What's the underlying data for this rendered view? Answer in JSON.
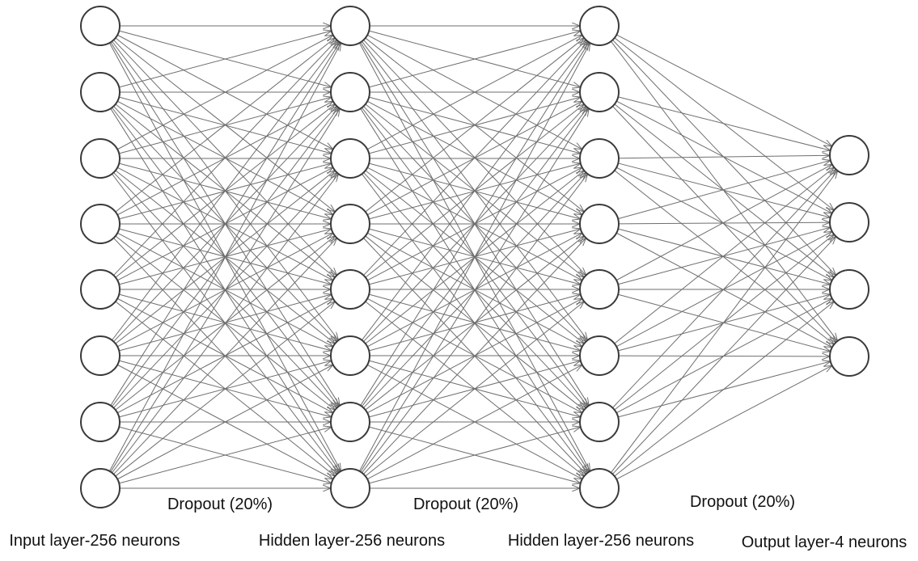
{
  "network": {
    "layers": [
      {
        "label": "Input layer-256 neurons",
        "neurons_drawn": 8
      },
      {
        "label": "Hidden layer-256 neurons",
        "neurons_drawn": 8
      },
      {
        "label": "Hidden layer-256 neurons",
        "neurons_drawn": 8
      },
      {
        "label": "Output layer-4 neurons",
        "neurons_drawn": 4
      }
    ],
    "dropouts": [
      {
        "label": "Dropout (20%)"
      },
      {
        "label": "Dropout (20%)"
      },
      {
        "label": "Dropout (20%)"
      }
    ],
    "connections": "fully-connected",
    "colors": {
      "edge": "#6e6e6e",
      "neuron_stroke": "#3a3a3a",
      "neuron_fill": "#ffffff",
      "text": "#111111"
    }
  }
}
